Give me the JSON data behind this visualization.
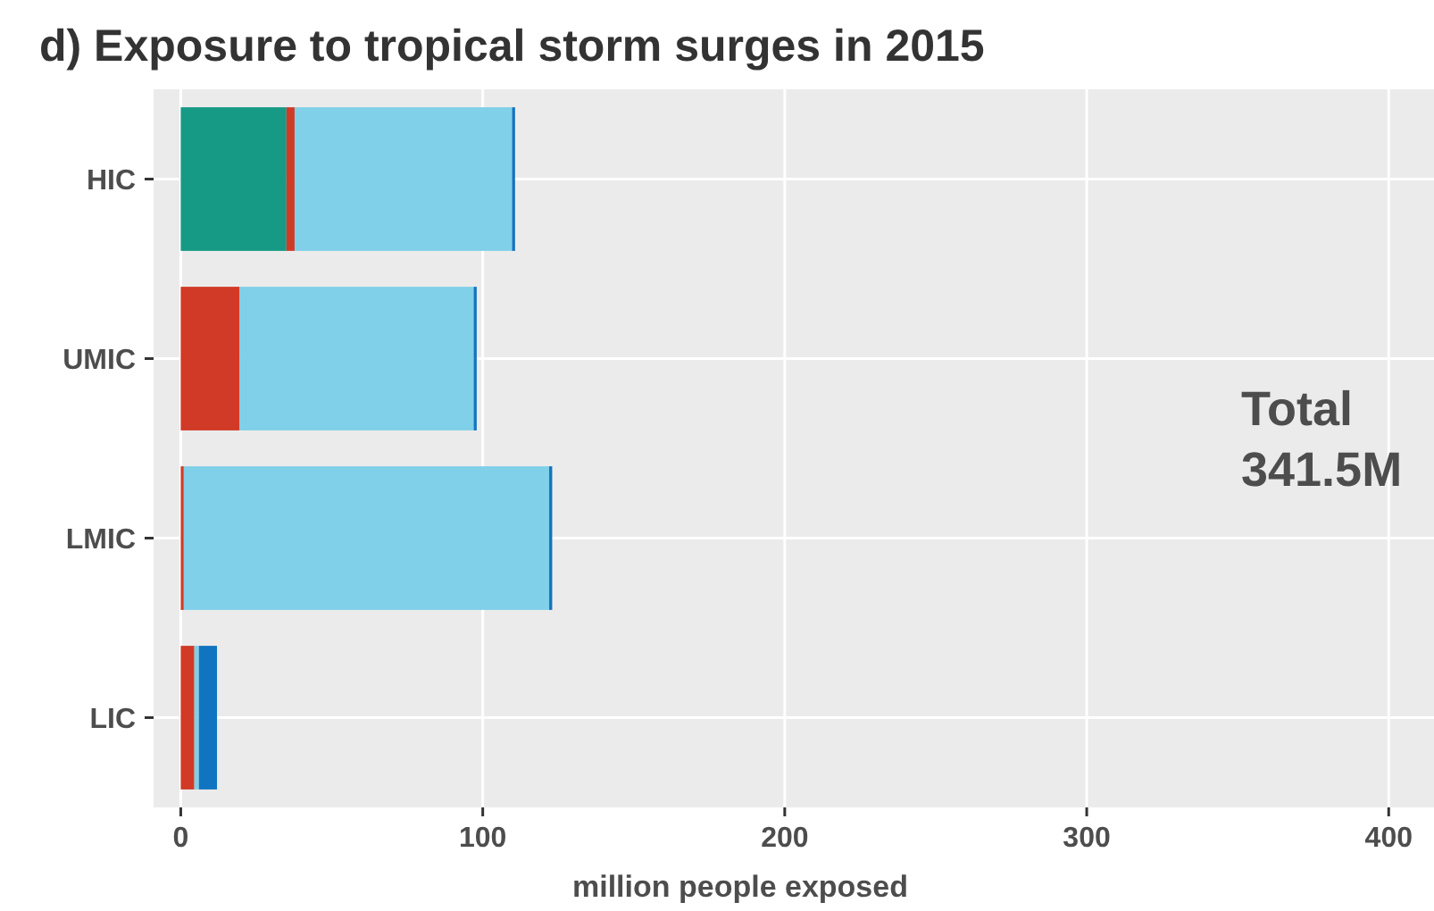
{
  "chart_data": {
    "type": "bar",
    "orientation": "horizontal",
    "stacked": true,
    "title": "d) Exposure to tropical storm surges in 2015",
    "xlabel": "million people exposed",
    "categories": [
      "HIC",
      "UMIC",
      "LMIC",
      "LIC"
    ],
    "series": [
      {
        "color": "#169a85",
        "values": [
          35,
          0,
          0,
          0
        ]
      },
      {
        "color": "#d13a26",
        "values": [
          2.7,
          19.5,
          1,
          4.5
        ]
      },
      {
        "color": "#7fd0e8",
        "values": [
          72,
          77.5,
          121,
          1.5
        ]
      },
      {
        "color": "#1174c0",
        "values": [
          1,
          1,
          1,
          6
        ]
      }
    ],
    "xlim": [
      -9,
      415
    ],
    "xticks": [
      0,
      100,
      200,
      300,
      400
    ],
    "grid": true,
    "annotations": [
      "Total\n341.5M"
    ]
  }
}
